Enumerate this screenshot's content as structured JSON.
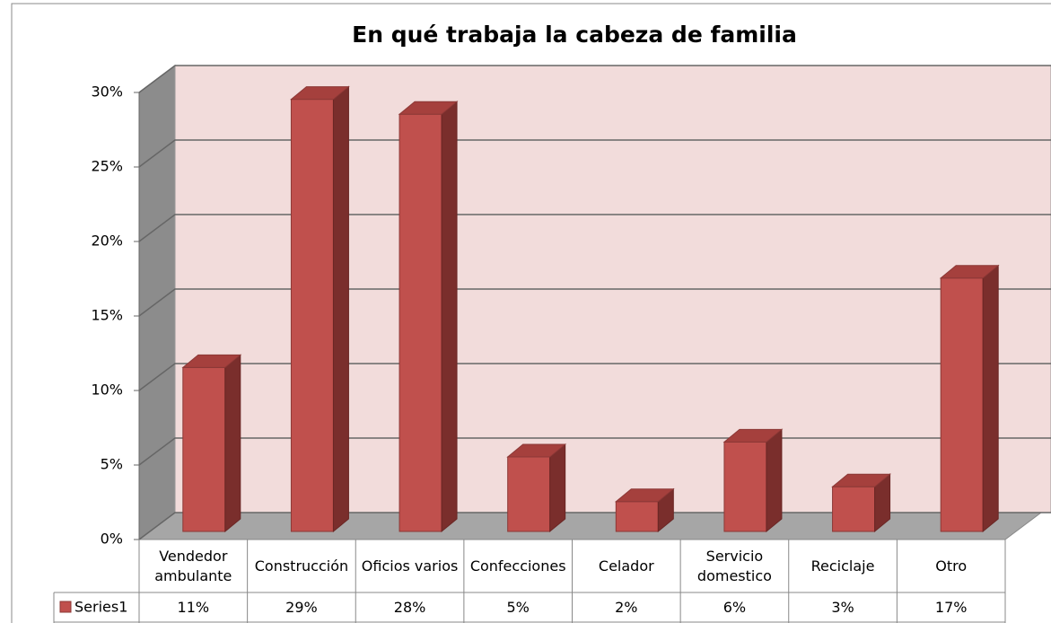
{
  "chart_data": {
    "type": "bar3d",
    "title": "En qué trabaja la cabeza de familia",
    "categories": [
      "Vendedor ambulante",
      "Construcción",
      "Oficios varios",
      "Confecciones",
      "Celador",
      "Servicio domestico",
      "Reciclaje",
      "Otro"
    ],
    "series": [
      {
        "name": "Series1",
        "color": "#c0504d",
        "values": [
          11,
          29,
          28,
          5,
          2,
          6,
          3,
          17
        ],
        "value_labels": [
          "11%",
          "29%",
          "28%",
          "5%",
          "2%",
          "6%",
          "3%",
          "17%"
        ]
      }
    ],
    "ylim": [
      0,
      30
    ],
    "yticks": [
      {
        "value": 0,
        "label": "0%"
      },
      {
        "value": 5,
        "label": "5%"
      },
      {
        "value": 10,
        "label": "10%"
      },
      {
        "value": 15,
        "label": "15%"
      },
      {
        "value": 20,
        "label": "20%"
      },
      {
        "value": 25,
        "label": "25%"
      },
      {
        "value": 30,
        "label": "30%"
      }
    ],
    "grid": true,
    "data_table": true
  }
}
